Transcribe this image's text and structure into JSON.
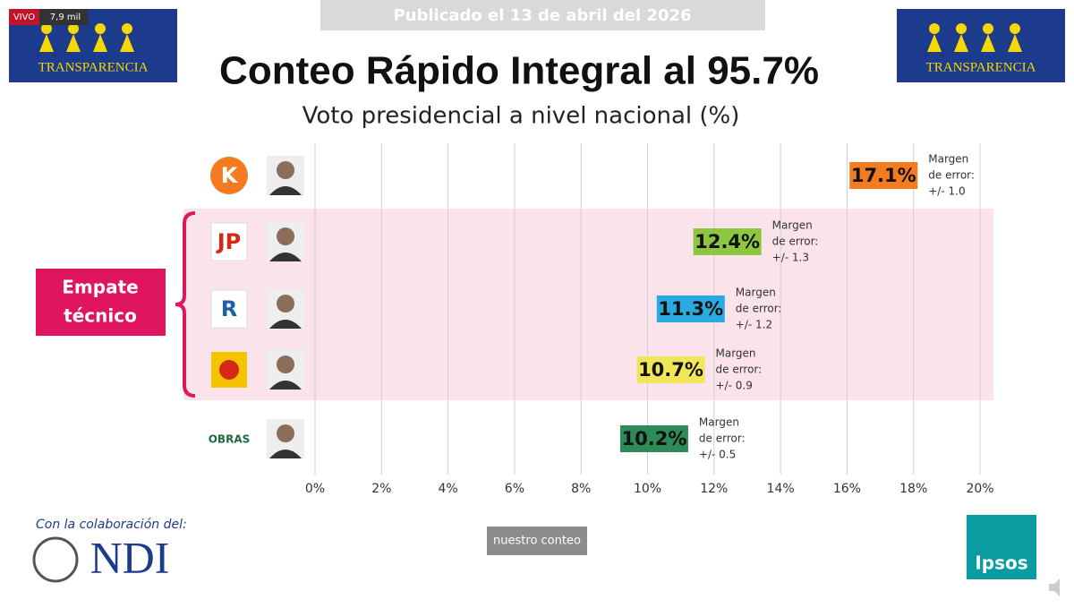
{
  "broadcast": {
    "live": "VIVO",
    "viewers": "7,9 mil",
    "published": "Publicado el 13 de abril del 2026",
    "brand_left": "TRANSPARENCIA",
    "brand_right": "TRANSPARENCIA"
  },
  "chart_data": {
    "type": "label-dot",
    "title": "Conteo Rápido Integral al 95.7%",
    "subtitle": "Voto presidencial a nivel nacional (%)",
    "categories": [
      null,
      null,
      null,
      null,
      null
    ],
    "party_logos": [
      "K",
      "JP",
      "R",
      null,
      "OBRAS"
    ],
    "values": [
      17.1,
      12.4,
      11.3,
      10.7,
      10.2
    ],
    "value_labels": [
      "17.1%",
      "12.4%",
      "11.3%",
      "10.7%",
      "10.2%"
    ],
    "colors": [
      "#f47b20",
      "#8dc63f",
      "#29abe2",
      "#f1e65a",
      "#2e8b57"
    ],
    "error_title": [
      "Margen",
      "de error:"
    ],
    "error_labels": [
      "+/- 1.0",
      "+/- 1.3",
      "+/- 1.2",
      "+/- 0.9",
      "+/- 0.5"
    ],
    "highlight_label": [
      "Empate",
      "técnico"
    ],
    "xlim": [
      0,
      20
    ],
    "xticks": [
      {
        "value": 0,
        "label": "0%"
      },
      {
        "value": 2,
        "label": "2%"
      },
      {
        "value": 4,
        "label": "4%"
      },
      {
        "value": 6,
        "label": "6%"
      },
      {
        "value": 8,
        "label": "8%"
      },
      {
        "value": 10,
        "label": "10%"
      },
      {
        "value": 12,
        "label": "12%"
      },
      {
        "value": 14,
        "label": "14%"
      },
      {
        "value": 16,
        "label": "16%"
      },
      {
        "value": 18,
        "label": "18%"
      },
      {
        "value": 20,
        "label": "20%"
      }
    ],
    "grid": true
  },
  "footer": {
    "collab": "Con la colaboración del:",
    "ndi": "NDI",
    "button": "nuestro conteo",
    "ipsos": "Ipsos"
  }
}
